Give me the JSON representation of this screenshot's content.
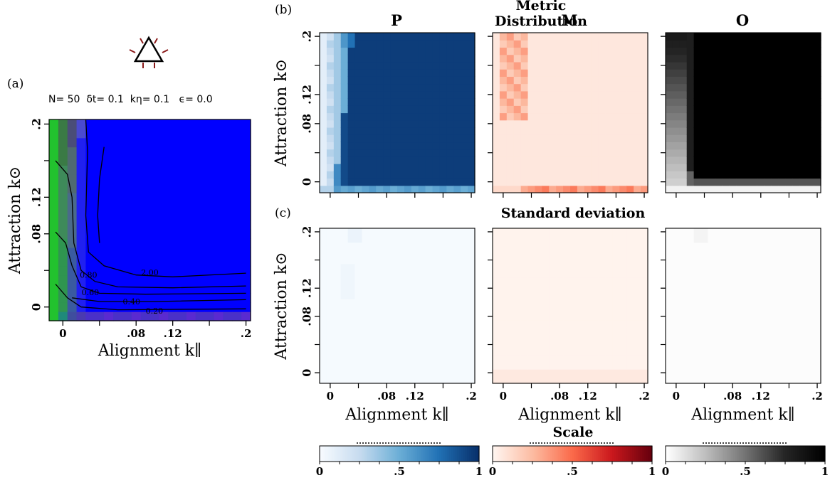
{
  "panel_labels": {
    "a": "(a)",
    "b": "(b)",
    "c": "(c)"
  },
  "params_text": "N= 50  δt= 0.1  kη= 0.1   ϵ= 0.0",
  "titles": {
    "metric": "Metric Distribution",
    "std": "Standard deviation",
    "scale": "Scale"
  },
  "column_headers": [
    "P",
    "M",
    "O"
  ],
  "icon": "triangle-agent-icon",
  "colors": {
    "P": "#08306b",
    "M": "#67000d",
    "O": "#000000",
    "green": "#22c22e",
    "blue": "#0000ff"
  },
  "chart_data": [
    {
      "id": "a",
      "type": "heatmap",
      "title": "",
      "xlabel": "Alignment k∥",
      "ylabel": "Attraction k⊙",
      "x_ticks": [
        "0",
        ".08",
        ".12",
        ".2"
      ],
      "y_ticks": [
        "0",
        ".08",
        ".12",
        ".2"
      ],
      "x": [
        -0.01,
        0.0,
        0.01,
        0.02,
        0.03,
        0.04,
        0.05,
        0.06,
        0.07,
        0.08,
        0.09,
        0.1,
        0.11,
        0.12,
        0.13,
        0.14,
        0.15,
        0.16,
        0.17,
        0.18,
        0.19,
        0.2
      ],
      "y": [
        -0.01,
        0.0,
        0.01,
        0.02,
        0.03,
        0.04,
        0.05,
        0.06,
        0.07,
        0.08,
        0.09,
        0.1,
        0.11,
        0.12,
        0.13,
        0.14,
        0.15,
        0.16,
        0.17,
        0.18,
        0.19,
        0.2
      ],
      "contour_labels": [
        "2.00",
        "0.80",
        "0.60",
        "0.40",
        "0.20"
      ],
      "grid": false
    },
    {
      "id": "b",
      "type": "heatmap",
      "title": "Metric Distribution",
      "panels": [
        "P",
        "M",
        "O"
      ],
      "ylabel": "Attraction k⊙",
      "y_ticks": [
        "0",
        ".08",
        ".12",
        ".2"
      ],
      "x": [
        -0.01,
        0.0,
        0.01,
        0.02,
        0.03,
        0.04,
        0.05,
        0.06,
        0.07,
        0.08,
        0.09,
        0.1,
        0.11,
        0.12,
        0.13,
        0.14,
        0.15,
        0.16,
        0.17,
        0.18,
        0.19,
        0.2
      ],
      "y": [
        -0.01,
        0.0,
        0.01,
        0.02,
        0.03,
        0.04,
        0.05,
        0.06,
        0.07,
        0.08,
        0.09,
        0.1,
        0.11,
        0.12,
        0.13,
        0.14,
        0.15,
        0.16,
        0.17,
        0.18,
        0.19,
        0.2
      ],
      "values_summary": {
        "P": "low (~0.1-0.4) for k∥ ≤ 0.02; ~0.9-1.0 elsewhere; bottom row (k⊙ < 0) ~0.5",
        "M": "low (~0.05-0.35) everywhere; bottom row ~0.3",
        "O": "~0.3-0.7 for small k∥; ~1.0 for k∥ ≥ 0.03; bottom row ~0.0"
      }
    },
    {
      "id": "c",
      "type": "heatmap",
      "title": "Standard deviation",
      "panels": [
        "P",
        "M",
        "O"
      ],
      "xlabel": "Alignment k∥",
      "ylabel": "Attraction k⊙",
      "x_ticks": [
        "0",
        ".08",
        ".12",
        ".2"
      ],
      "y_ticks": [
        "0",
        ".08",
        ".12",
        ".2"
      ],
      "x": [
        -0.01,
        0.0,
        0.01,
        0.02,
        0.03,
        0.04,
        0.05,
        0.06,
        0.07,
        0.08,
        0.09,
        0.1,
        0.11,
        0.12,
        0.13,
        0.14,
        0.15,
        0.16,
        0.17,
        0.18,
        0.19,
        0.2
      ],
      "y": [
        -0.01,
        0.0,
        0.01,
        0.02,
        0.03,
        0.04,
        0.05,
        0.06,
        0.07,
        0.08,
        0.09,
        0.1,
        0.11,
        0.12,
        0.13,
        0.14,
        0.15,
        0.16,
        0.17,
        0.18,
        0.19,
        0.2
      ],
      "values_summary": "near 0 everywhere (≤ ~0.05)"
    },
    {
      "id": "scale",
      "type": "heatmap",
      "title": "Scale",
      "colorbars": [
        "P",
        "M",
        "O"
      ],
      "ticks": [
        "0",
        ".5",
        "1"
      ],
      "range": [
        0,
        1
      ]
    }
  ]
}
